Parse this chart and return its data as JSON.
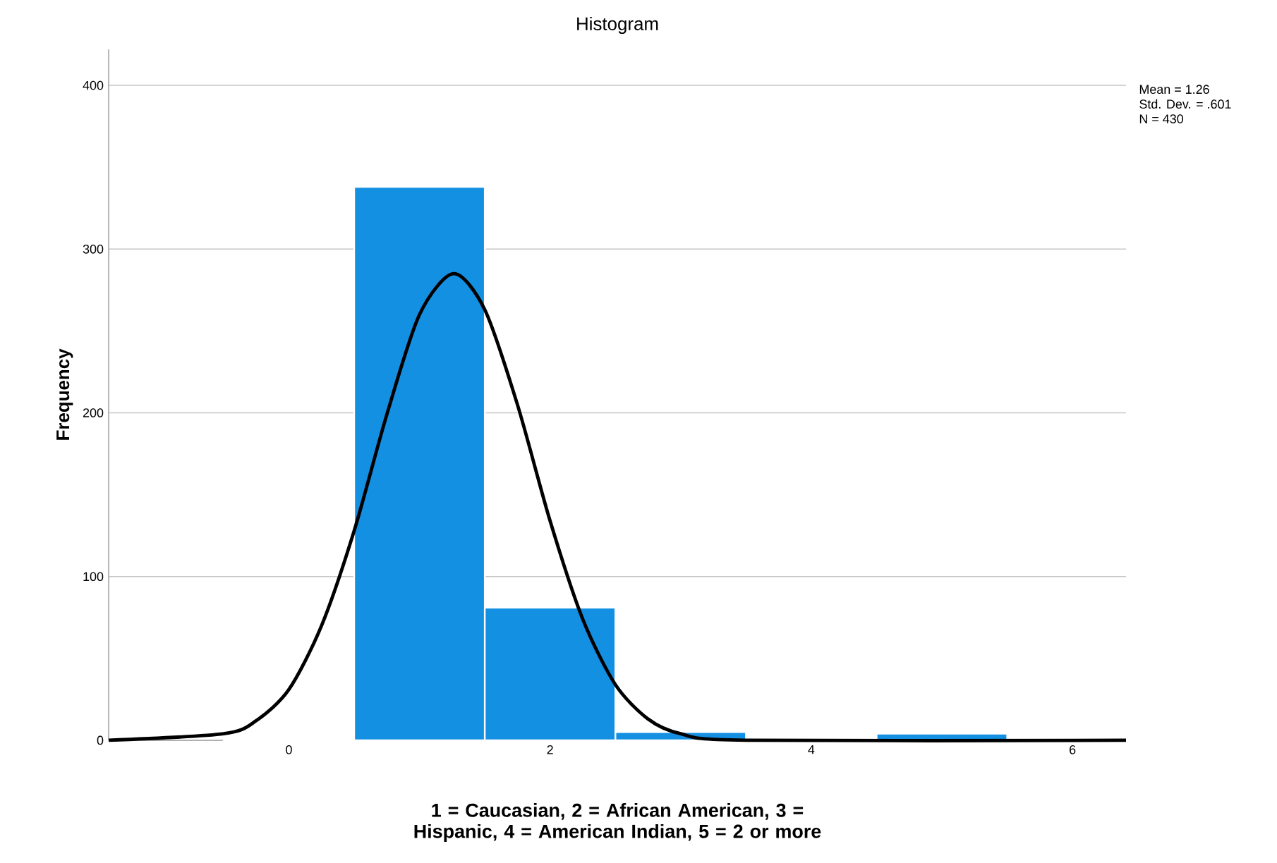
{
  "chart_data": {
    "type": "histogram",
    "title": "Histogram",
    "xlabel": "1 = Caucasian, 2 = African American, 3 = Hispanic, 4 = American Indian, 5 = 2 or more",
    "ylabel": "Frequency",
    "bins": [
      -0.5,
      0.5,
      1.5,
      2.5,
      3.5,
      4.5,
      5.5
    ],
    "values": [
      1,
      338,
      81,
      5,
      null,
      4
    ],
    "color": "#1490e3",
    "series": [
      {
        "type": "line",
        "color": "#000000",
        "x": [
          -1.38,
          -0.5,
          -0.25,
          0,
          0.25,
          0.5,
          0.75,
          1.0,
          1.26,
          1.5,
          1.75,
          2.0,
          2.25,
          2.5,
          2.75,
          3.0,
          3.5,
          6.41
        ],
        "values": [
          0,
          4,
          12,
          31,
          70,
          128,
          199,
          260,
          285,
          263,
          205,
          134,
          74,
          34,
          13,
          4,
          0,
          0
        ]
      }
    ],
    "xlim": [
      -1.38,
      6.41
    ],
    "ylim": [
      0,
      422
    ],
    "xticks": [
      0,
      2,
      4,
      6
    ],
    "yticks": [
      0,
      100,
      200,
      300,
      400
    ],
    "grid": "y",
    "annotations": [
      "Mean = 1.26",
      "Std. Dev. = .601",
      "N = 430"
    ]
  }
}
